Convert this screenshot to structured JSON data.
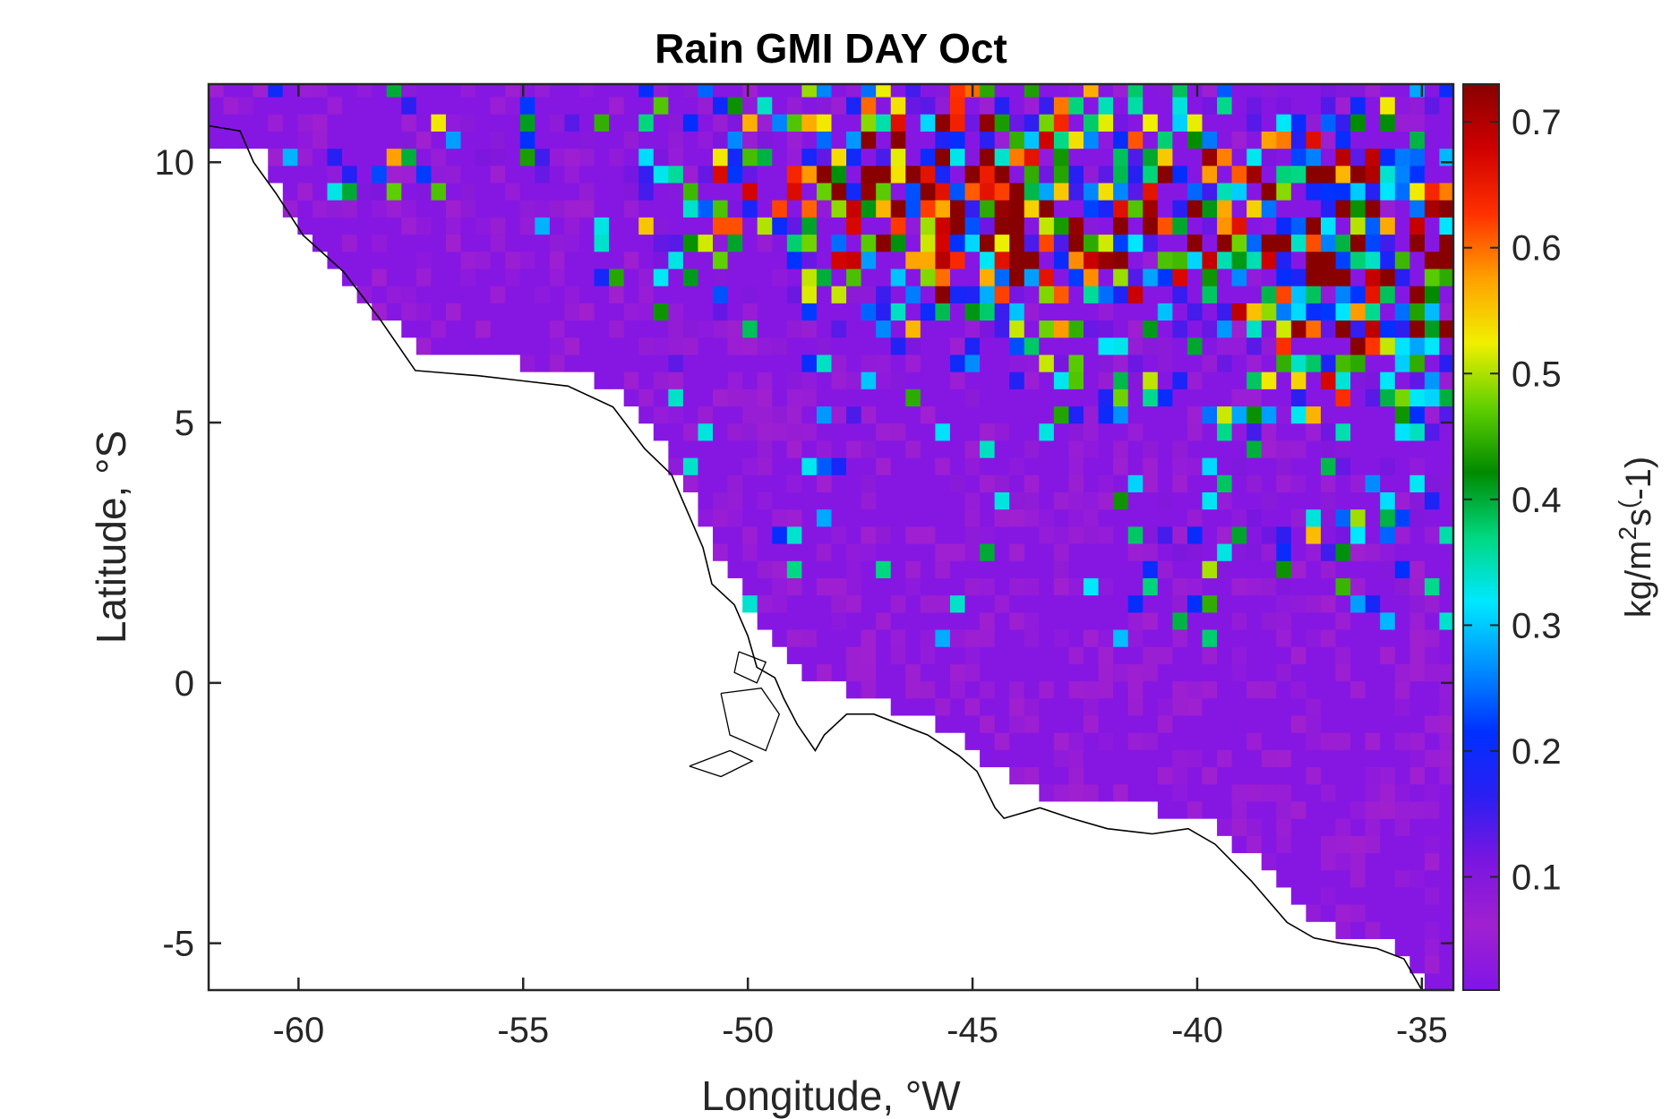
{
  "chart_data": {
    "type": "heatmap",
    "title": "Rain GMI DAY Oct",
    "xlabel": "Longitude, °W",
    "ylabel": "Latitude, °S",
    "xlim": [
      -62,
      -34.3
    ],
    "ylim": [
      -5.9,
      11.5
    ],
    "x_ticks": [
      -60,
      -55,
      -50,
      -45,
      -40,
      -35
    ],
    "x_tick_labels": [
      "-60",
      "-55",
      "-50",
      "-45",
      "-40",
      "-35"
    ],
    "y_ticks": [
      10,
      5,
      0,
      -5
    ],
    "y_tick_labels": [
      "10",
      "5",
      "0",
      "-5"
    ],
    "colorbar": {
      "label": "kg/m2s(-1)",
      "label_parts": [
        "kg/m",
        "2",
        "s",
        "(",
        "-1)"
      ],
      "range": [
        0.01,
        0.73
      ],
      "ticks": [
        0.1,
        0.2,
        0.3,
        0.4,
        0.5,
        0.6,
        0.7
      ],
      "tick_labels": [
        "0.1",
        "0.2",
        "0.3",
        "0.4",
        "0.5",
        "0.6",
        "0.7"
      ],
      "colormap": [
        "#8015e8",
        "#a020d0",
        "#7a16e0",
        "#2a1ff2",
        "#0030ff",
        "#0090ff",
        "#00e8ff",
        "#00d880",
        "#008a00",
        "#60d000",
        "#f0f000",
        "#ffa000",
        "#ff3000",
        "#d00000",
        "#880000"
      ]
    },
    "grid_resolution_deg": 0.33,
    "regions": [
      {
        "description": "Rainy ITCZ band, northeast",
        "lon_range": [
          -47.5,
          -34.3
        ],
        "lat_range": [
          4.5,
          11.5
        ],
        "values_range": [
          0.1,
          0.73
        ]
      },
      {
        "description": "Scattered rain, north",
        "lon_range": [
          -59,
          -47.5
        ],
        "lat_range": [
          7.5,
          11.5
        ],
        "values_range": [
          0.05,
          0.55
        ]
      },
      {
        "description": "Rain patches east",
        "lon_range": [
          -41.5,
          -34.3
        ],
        "lat_range": [
          1.5,
          4.5
        ],
        "values_range": [
          0.05,
          0.45
        ]
      },
      {
        "description": "Dry ocean background",
        "lon_range": [
          -62,
          -34.3
        ],
        "lat_range": [
          -5.9,
          11.5
        ],
        "values_range": [
          0.01,
          0.15
        ]
      }
    ],
    "land_fill": "#ffffff",
    "coastline_color": "#000000"
  }
}
